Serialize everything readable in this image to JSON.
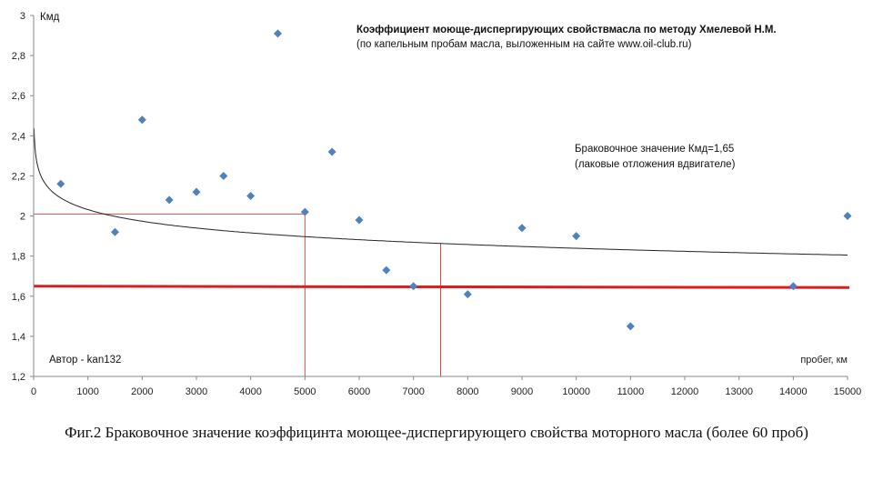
{
  "caption": "Фиг.2 Браковочное значение коэффицинта моющее-диспергирующего свойства моторного масла (более 60 проб)",
  "chart_data": {
    "type": "scatter",
    "title": "Коэффициент моюще-диспергирующих свойствмасла по методу  Хмелевой Н.М.",
    "subtitle": "(по капельным пробам масла, выложенным  на сайте www.oil-club.ru)",
    "ylabel": "Кмд",
    "xlabel": "пробег, км",
    "xlim": [
      0,
      15000
    ],
    "ylim": [
      1.2,
      3.0
    ],
    "x_ticks": [
      0,
      1000,
      2000,
      3000,
      4000,
      5000,
      6000,
      7000,
      8000,
      9000,
      10000,
      11000,
      12000,
      13000,
      14000,
      15000
    ],
    "y_ticks": [
      "1,2",
      "1,4",
      "1,6",
      "1,8",
      "2",
      "2,2",
      "2,4",
      "2,6",
      "2,8",
      "3"
    ],
    "grid": false,
    "marker_color": "#4f81bd",
    "points": [
      {
        "x": 500,
        "y": 2.16
      },
      {
        "x": 1500,
        "y": 1.92
      },
      {
        "x": 2000,
        "y": 2.48
      },
      {
        "x": 2500,
        "y": 2.08
      },
      {
        "x": 3000,
        "y": 2.12
      },
      {
        "x": 3500,
        "y": 2.2
      },
      {
        "x": 4000,
        "y": 2.1
      },
      {
        "x": 4500,
        "y": 2.91
      },
      {
        "x": 5000,
        "y": 2.02
      },
      {
        "x": 5500,
        "y": 2.32
      },
      {
        "x": 6000,
        "y": 1.98
      },
      {
        "x": 6500,
        "y": 1.73
      },
      {
        "x": 7000,
        "y": 1.65
      },
      {
        "x": 8000,
        "y": 1.61
      },
      {
        "x": 9000,
        "y": 1.94
      },
      {
        "x": 10000,
        "y": 1.9
      },
      {
        "x": 11000,
        "y": 1.45
      },
      {
        "x": 14000,
        "y": 1.65
      },
      {
        "x": 15000,
        "y": 2.0
      }
    ],
    "trendline": {
      "type": "logarithmic",
      "color": "#222222"
    },
    "threshold": {
      "y": 1.65,
      "color": "#d42020"
    },
    "reference_lines": {
      "color": "#d05050",
      "h_y": 2.01,
      "v1_x": 5000,
      "v2_x": 7500
    },
    "annotations": {
      "reject_value": "Браковочное значение Кмд=1,65",
      "reject_note": "(лаковые отложения вдвигателе)",
      "author": "Автор - kan132"
    }
  }
}
